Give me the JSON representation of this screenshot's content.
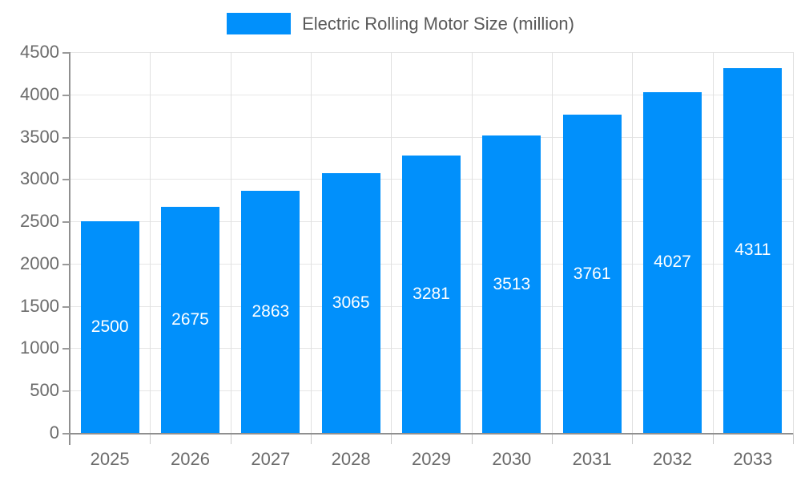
{
  "legend": {
    "label": "Electric Rolling Motor Size (million)"
  },
  "colors": {
    "bar": "#0190FB",
    "grid_h": "#e6e6e6",
    "grid_v": "#e0e0e0",
    "axis": "#8f8f8f",
    "y_tick": "#9a9a9a",
    "x_tick": "#c9c9c9",
    "axis_label": "#6b6b6b",
    "legend_text": "#595959",
    "bar_label": "#ffffff"
  },
  "chart_data": {
    "type": "bar",
    "title": "Electric Rolling Motor Size (million)",
    "categories": [
      "2025",
      "2026",
      "2027",
      "2028",
      "2029",
      "2030",
      "2031",
      "2032",
      "2033"
    ],
    "values": [
      2500,
      2675,
      2863,
      3065,
      3281,
      3513,
      3761,
      4027,
      4311
    ],
    "xlabel": "",
    "ylabel": "",
    "ylim": [
      0,
      4500
    ],
    "ytick_step": 500,
    "ytick_labels": [
      "0",
      "500",
      "1000",
      "1500",
      "2000",
      "2500",
      "3000",
      "3500",
      "4000",
      "4500"
    ],
    "grid": true,
    "legend_position": "top-center",
    "bar_label_position": "center-inside"
  }
}
